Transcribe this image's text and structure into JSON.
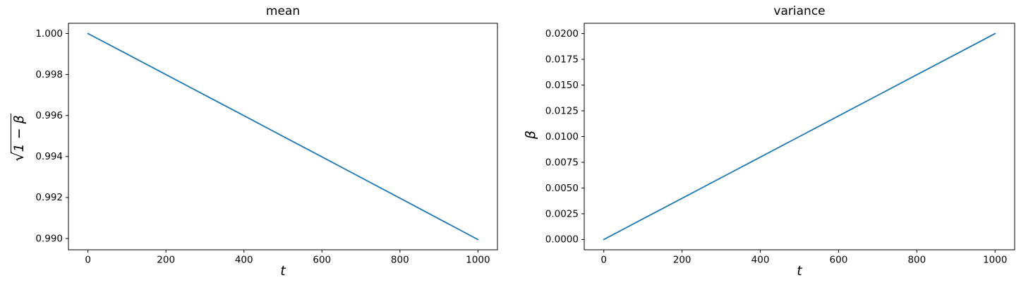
{
  "colors": {
    "line": "#1f77b4",
    "spine": "#000000",
    "text": "#000000",
    "background": "#ffffff"
  },
  "chart_data": [
    {
      "type": "line",
      "title": "mean",
      "xlabel": "t",
      "ylabel": "√(1 − β)",
      "ylabel_display": {
        "radical": "√",
        "radicand": "1 − β"
      },
      "x": [
        0,
        100,
        200,
        300,
        400,
        500,
        600,
        700,
        800,
        900,
        1000
      ],
      "y": [
        1.0,
        0.998999,
        0.997998,
        0.996995,
        0.995992,
        0.994987,
        0.993982,
        0.992975,
        0.991968,
        0.990959,
        0.989949
      ],
      "xlim": [
        -50,
        1050
      ],
      "ylim": [
        0.98945,
        1.0005
      ],
      "xticks": [
        0,
        200,
        400,
        600,
        800,
        1000
      ],
      "xtick_labels": [
        "0",
        "200",
        "400",
        "600",
        "800",
        "1000"
      ],
      "yticks": [
        0.99,
        0.992,
        0.994,
        0.996,
        0.998,
        1.0
      ],
      "ytick_labels": [
        "0.990",
        "0.992",
        "0.994",
        "0.996",
        "0.998",
        "1.000"
      ],
      "grid": false,
      "legend": null
    },
    {
      "type": "line",
      "title": "variance",
      "xlabel": "t",
      "ylabel": "β",
      "ylabel_display": {
        "radical": "",
        "radicand": "β"
      },
      "x": [
        0,
        100,
        200,
        300,
        400,
        500,
        600,
        700,
        800,
        900,
        1000
      ],
      "y": [
        0.0,
        0.002,
        0.004,
        0.006,
        0.008,
        0.01,
        0.012,
        0.014,
        0.016,
        0.018,
        0.02
      ],
      "xlim": [
        -50,
        1050
      ],
      "ylim": [
        -0.001,
        0.021
      ],
      "xticks": [
        0,
        200,
        400,
        600,
        800,
        1000
      ],
      "xtick_labels": [
        "0",
        "200",
        "400",
        "600",
        "800",
        "1000"
      ],
      "yticks": [
        0.0,
        0.0025,
        0.005,
        0.0075,
        0.01,
        0.0125,
        0.015,
        0.0175,
        0.02
      ],
      "ytick_labels": [
        "0.0000",
        "0.0025",
        "0.0050",
        "0.0075",
        "0.0100",
        "0.0125",
        "0.0150",
        "0.0175",
        "0.0200"
      ],
      "grid": false,
      "legend": null
    }
  ]
}
